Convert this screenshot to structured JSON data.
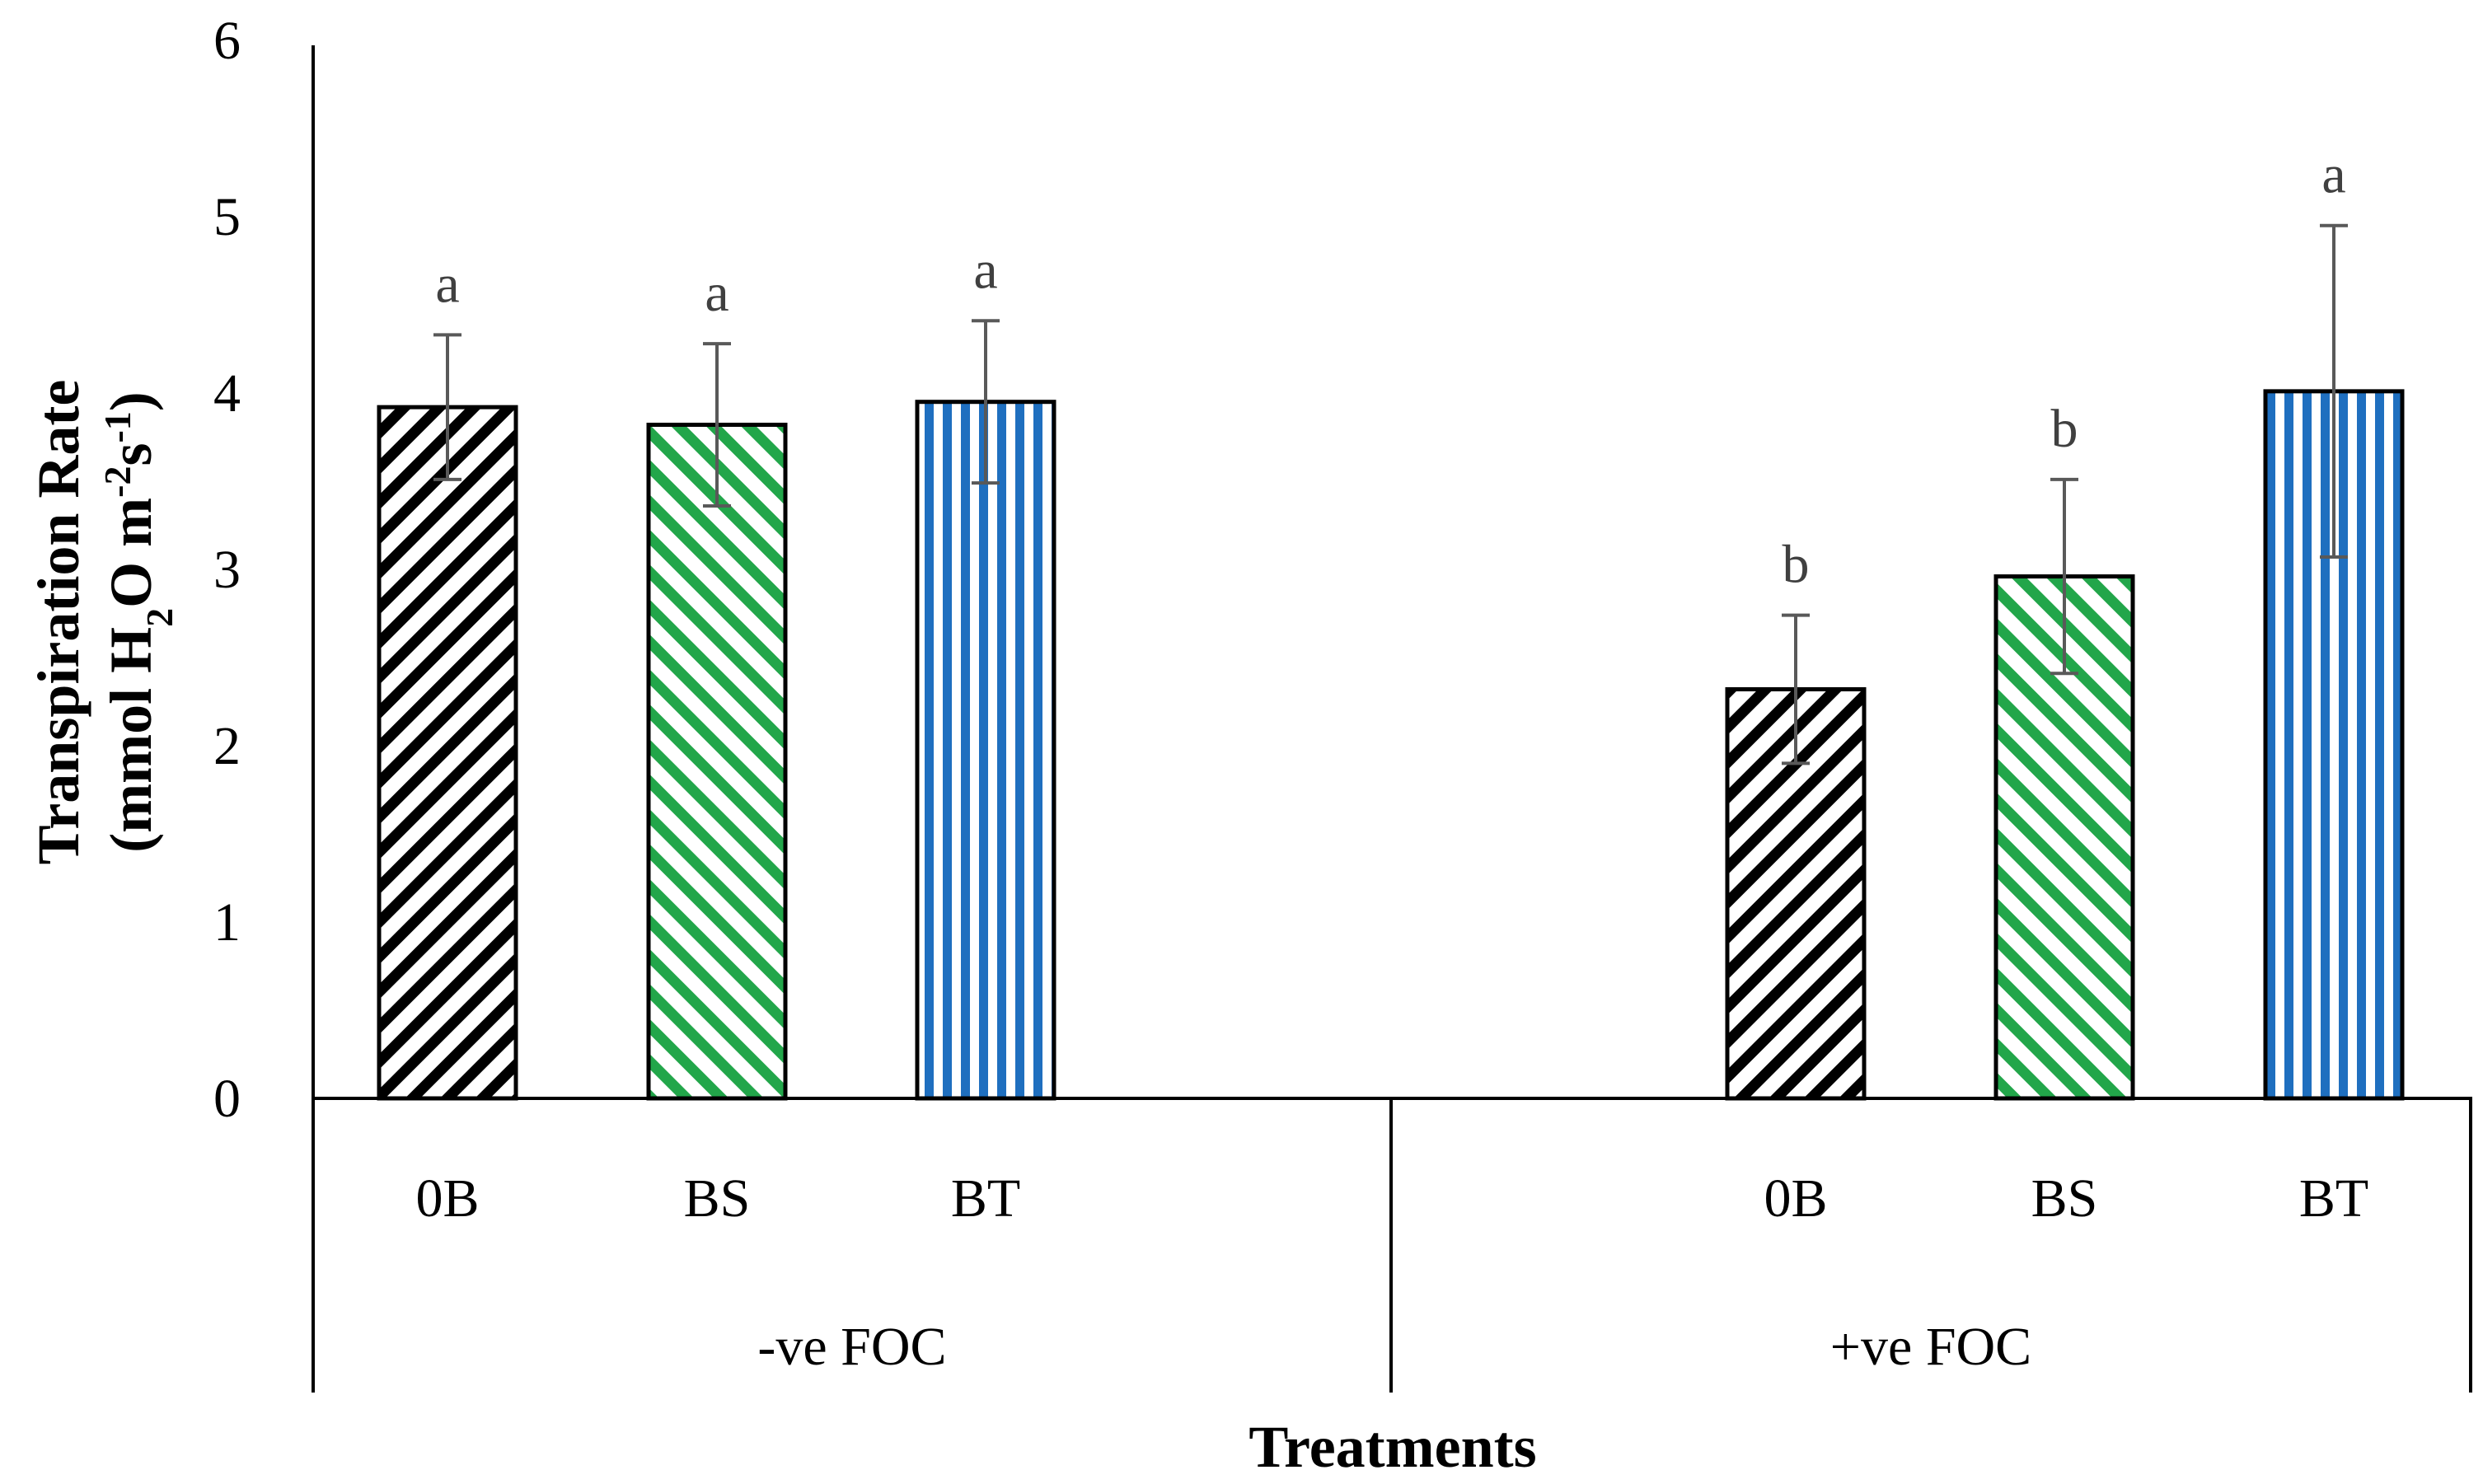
{
  "chart_data": {
    "type": "bar",
    "title": "",
    "xlabel": "Treatments",
    "ylabel": {
      "line1": "Transpiration Rate",
      "line2_pre": "(mmol H",
      "sub1": "2",
      "line2_mid": "O m",
      "sup1": "-2",
      "line2_s": "s",
      "sup2": "-1",
      "line2_end": ")"
    },
    "ylim": [
      0,
      6
    ],
    "yticks": [
      "0",
      "1",
      "2",
      "3",
      "4",
      "5",
      "6"
    ],
    "groups": [
      {
        "label": "-ve FOC",
        "bars": [
          {
            "category": "0B",
            "value": 3.92,
            "error": 0.41,
            "significance": "a",
            "pattern": "diag-black"
          },
          {
            "category": "BS",
            "value": 3.82,
            "error": 0.46,
            "significance": "a",
            "pattern": "diag-green"
          },
          {
            "category": "BT",
            "value": 3.95,
            "error": 0.46,
            "significance": "a",
            "pattern": "vert-blue"
          }
        ]
      },
      {
        "label": "+ve FOC",
        "bars": [
          {
            "category": "0B",
            "value": 2.32,
            "error": 0.42,
            "significance": "b",
            "pattern": "diag-black"
          },
          {
            "category": "BS",
            "value": 2.96,
            "error": 0.55,
            "significance": "b",
            "pattern": "diag-green"
          },
          {
            "category": "BT",
            "value": 4.01,
            "error": 0.94,
            "significance": "a",
            "pattern": "vert-blue"
          }
        ]
      }
    ],
    "colors": {
      "black_stripe": "#000000",
      "green_stripe": "#22a64a",
      "blue_stripe": "#1f6fbf",
      "error_bar": "#595959"
    }
  }
}
